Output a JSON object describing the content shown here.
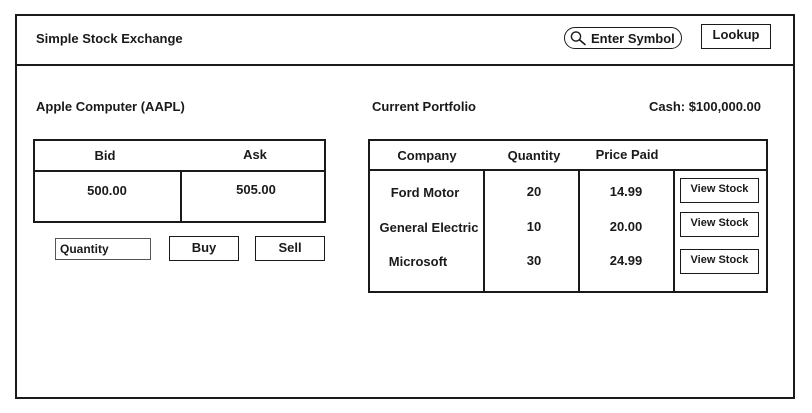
{
  "header": {
    "app_title": "Simple Stock Exchange",
    "search_placeholder": "Enter Symbol",
    "lookup_label": "Lookup"
  },
  "stock": {
    "name": "Apple Computer (AAPL)",
    "bid_label": "Bid",
    "ask_label": "Ask",
    "bid_value": "500.00",
    "ask_value": "505.00",
    "quantity_placeholder": "Quantity",
    "buy_label": "Buy",
    "sell_label": "Sell"
  },
  "portfolio": {
    "title": "Current Portfolio",
    "cash": "Cash: $100,000.00",
    "columns": [
      "Company",
      "Quantity",
      "Price Paid"
    ],
    "rows": [
      {
        "company": "Ford Motor",
        "quantity": "20",
        "price_paid": "14.99",
        "action": "View Stock"
      },
      {
        "company": "General Electric",
        "quantity": "10",
        "price_paid": "20.00",
        "action": "View Stock"
      },
      {
        "company": "Microsoft",
        "quantity": "30",
        "price_paid": "24.99",
        "action": "View Stock"
      }
    ]
  }
}
